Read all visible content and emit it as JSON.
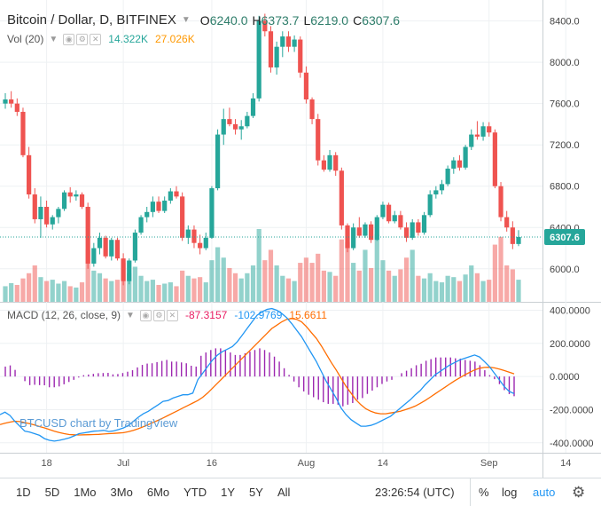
{
  "header": {
    "symbol_title": "Bitcoin / Dollar, D, BITFINEX",
    "open_label": "O",
    "open_value": "6240.0",
    "high_label": "H",
    "high_value": "6373.7",
    "low_label": "L",
    "low_value": "6219.0",
    "close_label": "C",
    "close_value": "6307.6"
  },
  "volume_legend": {
    "title": "Vol (20)",
    "value1": "14.322K",
    "value2": "27.026K"
  },
  "macd_legend": {
    "title": "MACD (12, 26, close, 9)",
    "hist_value": "-87.3157",
    "macd_value": "-102.9769",
    "signal_value": "15.6611"
  },
  "watermark": "BTCUSD chart by TradingView",
  "price_badge": "6307.6",
  "timeframes": [
    "1D",
    "5D",
    "1Mo",
    "3Mo",
    "6Mo",
    "YTD",
    "1Y",
    "5Y",
    "All"
  ],
  "clock": "23:26:54 (UTC)",
  "toolbar_right": {
    "percent": "%",
    "log": "log",
    "auto": "auto"
  },
  "icons": {
    "settings": "gear-icon",
    "dropdown": "chevron-down-icon"
  },
  "colors": {
    "up": "#26a69a",
    "down": "#ef5350",
    "macd_line": "#2196f3",
    "signal_line": "#ff6d00",
    "histogram": "#9c27b0",
    "last_price_line": "#26a69a"
  },
  "chart_data": [
    {
      "type": "candlestick",
      "title": "Bitcoin / Dollar, D, BITFINEX",
      "x_tick_labels": [
        "18",
        "Jul",
        "16",
        "Aug",
        "14",
        "Sep",
        "14"
      ],
      "x_tick_dates": [
        "2018-06-18",
        "2018-07-01",
        "2018-07-16",
        "2018-08-01",
        "2018-08-14",
        "2018-09-01",
        "2018-09-14"
      ],
      "y_ticks": [
        6000,
        6400,
        6800,
        7200,
        7600,
        8000,
        8400
      ],
      "y_tick_labels": [
        "6000.0",
        "6400.0",
        "6800.0",
        "7200.0",
        "7600.0",
        "8000.0",
        "8400.0"
      ],
      "ylim": [
        5680,
        8560
      ],
      "last_price": 6307.6,
      "grid": true,
      "candles": [
        [
          7600,
          7700,
          7550,
          7640
        ],
        [
          7640,
          7720,
          7560,
          7600
        ],
        [
          7600,
          7650,
          7480,
          7520
        ],
        [
          7520,
          7560,
          7080,
          7100
        ],
        [
          7100,
          7180,
          6680,
          6720
        ],
        [
          6720,
          6780,
          6440,
          6480
        ],
        [
          6480,
          6700,
          6300,
          6600
        ],
        [
          6600,
          6660,
          6400,
          6430
        ],
        [
          6430,
          6520,
          6380,
          6500
        ],
        [
          6500,
          6600,
          6440,
          6580
        ],
        [
          6580,
          6760,
          6560,
          6740
        ],
        [
          6740,
          6790,
          6640,
          6700
        ],
        [
          6700,
          6760,
          6660,
          6720
        ],
        [
          6720,
          6740,
          6580,
          6600
        ],
        [
          6600,
          6640,
          6000,
          6050
        ],
        [
          6050,
          6250,
          6020,
          6200
        ],
        [
          6200,
          6350,
          6140,
          6300
        ],
        [
          6300,
          6320,
          6100,
          6120
        ],
        [
          6120,
          6300,
          6080,
          6280
        ],
        [
          6280,
          6300,
          6080,
          6100
        ],
        [
          6100,
          6150,
          5840,
          5880
        ],
        [
          5880,
          6100,
          5850,
          6080
        ],
        [
          6080,
          6380,
          6060,
          6350
        ],
        [
          6350,
          6520,
          6330,
          6500
        ],
        [
          6500,
          6600,
          6450,
          6550
        ],
        [
          6550,
          6700,
          6500,
          6650
        ],
        [
          6650,
          6700,
          6540,
          6560
        ],
        [
          6560,
          6700,
          6540,
          6660
        ],
        [
          6660,
          6780,
          6630,
          6750
        ],
        [
          6750,
          6800,
          6680,
          6700
        ],
        [
          6700,
          6740,
          6270,
          6300
        ],
        [
          6300,
          6420,
          6240,
          6380
        ],
        [
          6380,
          6420,
          6200,
          6250
        ],
        [
          6250,
          6330,
          6140,
          6200
        ],
        [
          6200,
          6350,
          6180,
          6300
        ],
        [
          6300,
          6800,
          6290,
          6780
        ],
        [
          6780,
          7350,
          6760,
          7300
        ],
        [
          7300,
          7550,
          7200,
          7450
        ],
        [
          7450,
          7560,
          7380,
          7400
        ],
        [
          7400,
          7450,
          7300,
          7350
        ],
        [
          7350,
          7440,
          7250,
          7380
        ],
        [
          7380,
          7520,
          7360,
          7480
        ],
        [
          7480,
          7700,
          7460,
          7650
        ],
        [
          7650,
          8450,
          7620,
          8400
        ],
        [
          8400,
          8470,
          8250,
          8300
        ],
        [
          8300,
          8350,
          7900,
          7950
        ],
        [
          7950,
          8200,
          7880,
          8150
        ],
        [
          8150,
          8300,
          8050,
          8250
        ],
        [
          8250,
          8300,
          8100,
          8150
        ],
        [
          8150,
          8260,
          8100,
          8220
        ],
        [
          8220,
          8250,
          7850,
          7900
        ],
        [
          7900,
          7960,
          7600,
          7640
        ],
        [
          7640,
          7660,
          7400,
          7450
        ],
        [
          7450,
          7500,
          7000,
          7050
        ],
        [
          7050,
          7100,
          6940,
          6960
        ],
        [
          6960,
          7150,
          6940,
          7100
        ],
        [
          7100,
          7130,
          6900,
          6950
        ],
        [
          6950,
          6980,
          6380,
          6420
        ],
        [
          6420,
          6440,
          6160,
          6200
        ],
        [
          6200,
          6440,
          6180,
          6400
        ],
        [
          6400,
          6500,
          6300,
          6320
        ],
        [
          6320,
          6450,
          6300,
          6430
        ],
        [
          6430,
          6460,
          6250,
          6280
        ],
        [
          6280,
          6520,
          6270,
          6500
        ],
        [
          6500,
          6650,
          6480,
          6620
        ],
        [
          6620,
          6640,
          6440,
          6460
        ],
        [
          6460,
          6560,
          6440,
          6520
        ],
        [
          6520,
          6560,
          6380,
          6400
        ],
        [
          6400,
          6450,
          6260,
          6300
        ],
        [
          6300,
          6480,
          6280,
          6450
        ],
        [
          6450,
          6480,
          6320,
          6350
        ],
        [
          6350,
          6550,
          6330,
          6520
        ],
        [
          6520,
          6760,
          6500,
          6720
        ],
        [
          6720,
          6800,
          6680,
          6760
        ],
        [
          6760,
          6860,
          6720,
          6820
        ],
        [
          6820,
          7000,
          6800,
          6970
        ],
        [
          6970,
          7080,
          6920,
          7050
        ],
        [
          7050,
          7100,
          6950,
          6980
        ],
        [
          6980,
          7200,
          6960,
          7180
        ],
        [
          7180,
          7350,
          7150,
          7300
        ],
        [
          7300,
          7430,
          7250,
          7280
        ],
        [
          7280,
          7420,
          7240,
          7380
        ],
        [
          7380,
          7420,
          7280,
          7320
        ],
        [
          7320,
          7350,
          6780,
          6800
        ],
        [
          6800,
          6840,
          6460,
          6500
        ],
        [
          6500,
          6560,
          6360,
          6400
        ],
        [
          6400,
          6460,
          6190,
          6240
        ],
        [
          6240,
          6374,
          6219,
          6308
        ]
      ],
      "volumes": [
        [
          6000,
          1
        ],
        [
          7200,
          1
        ],
        [
          6500,
          0
        ],
        [
          9000,
          0
        ],
        [
          11000,
          0
        ],
        [
          14000,
          0
        ],
        [
          9500,
          1
        ],
        [
          8000,
          0
        ],
        [
          8500,
          1
        ],
        [
          7000,
          1
        ],
        [
          8000,
          1
        ],
        [
          6000,
          0
        ],
        [
          5500,
          1
        ],
        [
          7500,
          0
        ],
        [
          20000,
          0
        ],
        [
          12000,
          1
        ],
        [
          11000,
          1
        ],
        [
          9000,
          0
        ],
        [
          8000,
          1
        ],
        [
          8500,
          0
        ],
        [
          15000,
          0
        ],
        [
          11000,
          1
        ],
        [
          13500,
          1
        ],
        [
          10000,
          1
        ],
        [
          8000,
          1
        ],
        [
          8500,
          1
        ],
        [
          6500,
          0
        ],
        [
          7000,
          1
        ],
        [
          7500,
          1
        ],
        [
          6000,
          0
        ],
        [
          12000,
          0
        ],
        [
          10000,
          1
        ],
        [
          9000,
          0
        ],
        [
          9500,
          0
        ],
        [
          7500,
          1
        ],
        [
          16000,
          1
        ],
        [
          21000,
          1
        ],
        [
          17000,
          1
        ],
        [
          13000,
          0
        ],
        [
          11000,
          0
        ],
        [
          9000,
          1
        ],
        [
          11000,
          1
        ],
        [
          14000,
          1
        ],
        [
          28000,
          1
        ],
        [
          16000,
          0
        ],
        [
          20000,
          0
        ],
        [
          14000,
          1
        ],
        [
          10000,
          1
        ],
        [
          9000,
          0
        ],
        [
          8000,
          1
        ],
        [
          15000,
          0
        ],
        [
          17000,
          0
        ],
        [
          15000,
          0
        ],
        [
          18500,
          0
        ],
        [
          12000,
          0
        ],
        [
          11500,
          1
        ],
        [
          10000,
          0
        ],
        [
          24000,
          0
        ],
        [
          23000,
          0
        ],
        [
          15000,
          1
        ],
        [
          12000,
          0
        ],
        [
          20000,
          1
        ],
        [
          13000,
          0
        ],
        [
          26000,
          1
        ],
        [
          16000,
          1
        ],
        [
          12000,
          0
        ],
        [
          10000,
          1
        ],
        [
          12500,
          0
        ],
        [
          17000,
          0
        ],
        [
          20000,
          1
        ],
        [
          10000,
          0
        ],
        [
          9000,
          1
        ],
        [
          11000,
          1
        ],
        [
          8000,
          1
        ],
        [
          7500,
          1
        ],
        [
          10000,
          1
        ],
        [
          9500,
          1
        ],
        [
          8000,
          0
        ],
        [
          10500,
          1
        ],
        [
          14000,
          1
        ],
        [
          11000,
          0
        ],
        [
          8000,
          1
        ],
        [
          8500,
          0
        ],
        [
          22000,
          0
        ],
        [
          25000,
          0
        ],
        [
          14000,
          0
        ],
        [
          12500,
          0
        ],
        [
          8500,
          1
        ]
      ]
    },
    {
      "type": "line",
      "title": "MACD (12, 26, close, 9)",
      "y_ticks": [
        -400,
        -200,
        0,
        200,
        400
      ],
      "y_tick_labels": [
        "-400.0000",
        "-200.0000",
        "0.0000",
        "200.0000",
        "400.0000"
      ],
      "ylim": [
        -460,
        440
      ],
      "grid": true,
      "series": [
        {
          "name": "MACD",
          "values": [
            -230,
            -215,
            -235,
            -270,
            -300,
            -330,
            -335,
            -345,
            -355,
            -375,
            -385,
            -390,
            -385,
            -378,
            -370,
            -358,
            -345,
            -340,
            -335,
            -330,
            -328,
            -325,
            -332,
            -328,
            -320,
            -310,
            -295,
            -270,
            -245,
            -225,
            -210,
            -190,
            -170,
            -150,
            -145,
            -130,
            -120,
            -110,
            -110,
            -100,
            -20,
            20,
            60,
            100,
            130,
            150,
            165,
            180,
            210,
            250,
            290,
            330,
            370,
            390,
            405,
            410,
            400,
            380,
            355,
            320,
            280,
            240,
            190,
            140,
            90,
            30,
            -30,
            -80,
            -130,
            -190,
            -230,
            -260,
            -280,
            -300,
            -300,
            -295,
            -285,
            -270,
            -255,
            -240,
            -215,
            -190,
            -165,
            -140,
            -110,
            -85,
            -50,
            -20,
            10,
            30,
            50,
            70,
            85,
            100,
            110,
            120,
            130,
            118,
            90,
            60,
            20,
            -20,
            -60,
            -90,
            -103
          ]
        },
        {
          "name": "Signal",
          "values": [
            -290,
            -282,
            -275,
            -270,
            -272,
            -278,
            -285,
            -293,
            -302,
            -310,
            -320,
            -330,
            -338,
            -345,
            -350,
            -352,
            -353,
            -352,
            -351,
            -350,
            -349,
            -347,
            -345,
            -343,
            -341,
            -339,
            -333,
            -325,
            -315,
            -303,
            -290,
            -277,
            -264,
            -250,
            -235,
            -220,
            -205,
            -190,
            -175,
            -160,
            -145,
            -125,
            -100,
            -70,
            -40,
            -10,
            20,
            50,
            80,
            110,
            140,
            170,
            200,
            230,
            260,
            290,
            310,
            330,
            345,
            350,
            345,
            330,
            300,
            265,
            230,
            185,
            135,
            85,
            40,
            -10,
            -60,
            -100,
            -140,
            -170,
            -195,
            -210,
            -220,
            -225,
            -225,
            -220,
            -215,
            -210,
            -200,
            -190,
            -178,
            -162,
            -145,
            -125,
            -105,
            -85,
            -65,
            -45,
            -25,
            -8,
            10,
            25,
            40,
            50,
            55,
            56,
            52,
            45,
            36,
            26,
            16
          ]
        },
        {
          "name": "Histogram",
          "values": [
            60,
            67,
            40,
            0,
            -28,
            -52,
            -50,
            -52,
            -53,
            -65,
            -65,
            -60,
            -47,
            -33,
            -20,
            -6,
            8,
            12,
            16,
            20,
            21,
            22,
            13,
            15,
            21,
            29,
            38,
            55,
            70,
            78,
            80,
            87,
            94,
            100,
            90,
            90,
            85,
            80,
            65,
            60,
            125,
            145,
            160,
            170,
            170,
            160,
            145,
            130,
            130,
            140,
            150,
            160,
            170,
            160,
            145,
            120,
            90,
            50,
            10,
            -30,
            -65,
            -90,
            -110,
            -125,
            -140,
            -155,
            -165,
            -165,
            -170,
            -180,
            -170,
            -160,
            -140,
            -130,
            -105,
            -85,
            -65,
            -45,
            -30,
            -20,
            0,
            20,
            35,
            50,
            68,
            77,
            95,
            105,
            115,
            115,
            115,
            115,
            110,
            108,
            100,
            95,
            90,
            68,
            38,
            8,
            -16,
            -46,
            -82,
            -106,
            -119
          ]
        }
      ]
    }
  ]
}
